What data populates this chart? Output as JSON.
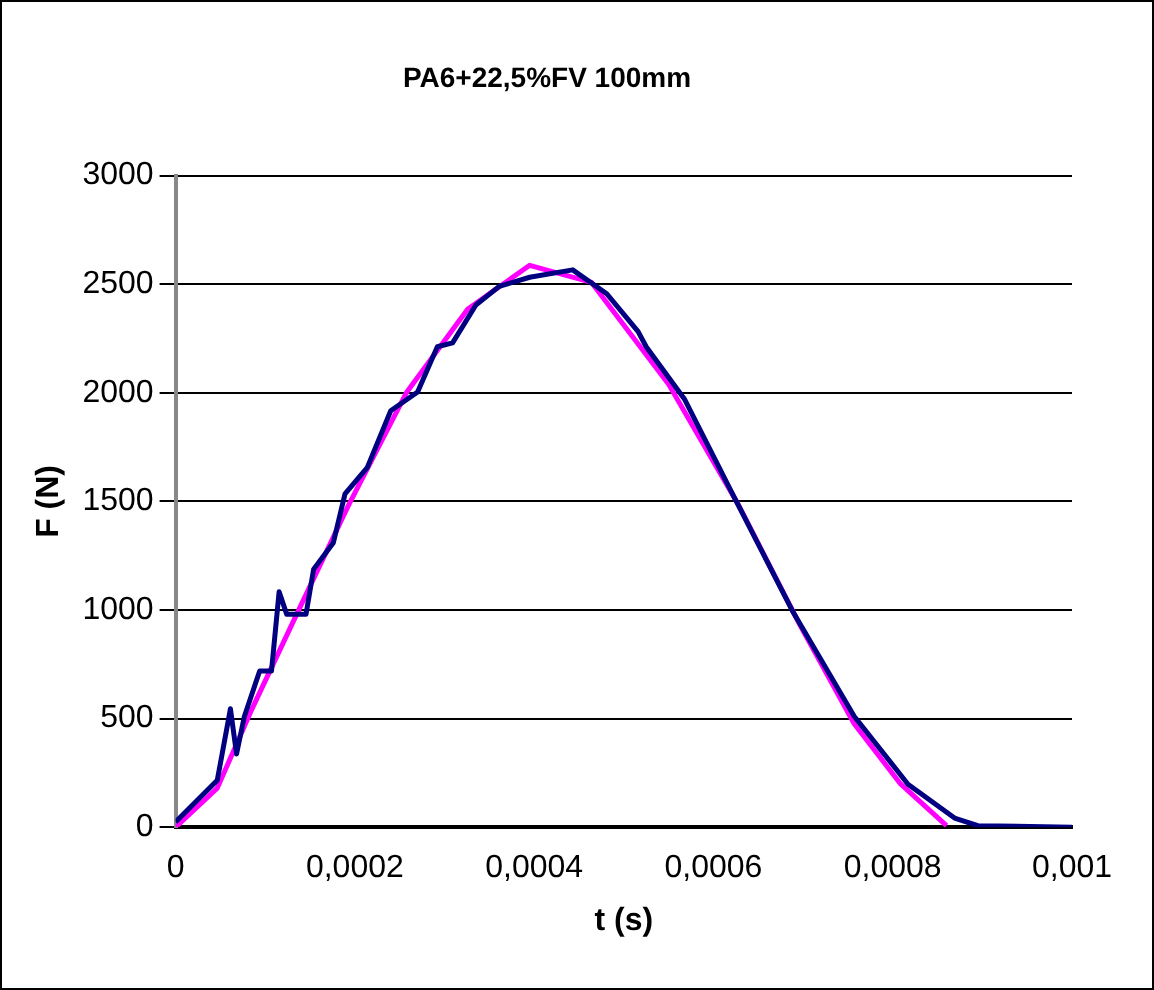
{
  "chart_data": {
    "type": "line",
    "title": "PA6+22,5%FV 100mm",
    "xlabel": "t (s)",
    "ylabel": "F (N)",
    "xlim": [
      0,
      0.001
    ],
    "xticks": [
      0,
      {
        "value": 0.0002,
        "label": "0,0002"
      },
      {
        "value": 0.0004,
        "label": "0,0004"
      },
      {
        "value": 0.0006,
        "label": "0,0006"
      },
      {
        "value": 0.0008,
        "label": "0,0008"
      },
      {
        "value": 0.001,
        "label": "0,001"
      }
    ],
    "ylim": [
      0,
      3000
    ],
    "yticks": [
      0,
      500,
      1000,
      1500,
      2000,
      2500,
      3000
    ],
    "grid": "y",
    "legend": false,
    "marker": "none",
    "line_style": "solid",
    "series": [
      {
        "color": "#000080",
        "x": [
          0,
          4.65e-05,
          6.12e-05,
          6.8e-05,
          7.67e-05,
          9.38e-05,
          0.000107,
          0.0001155,
          0.000124,
          0.0001455,
          0.000154,
          0.000176,
          0.000189,
          0.000214,
          0.00024,
          0.00027,
          0.000292,
          0.000309,
          0.000335,
          0.000361,
          0.000395,
          0.000443,
          0.000481,
          0.000516,
          0.000525,
          0.000568,
          0.000619,
          0.000688,
          0.000757,
          0.000817,
          0.000869,
          0.000895,
          0.001
        ],
        "values": [
          24,
          216,
          545,
          337,
          510,
          719,
          719,
          1084,
          980,
          980,
          1188,
          1310,
          1535,
          1657,
          1917,
          2004,
          2212,
          2230,
          2404,
          2490,
          2532,
          2566,
          2456,
          2282,
          2212,
          1969,
          1553,
          997,
          511,
          198,
          42,
          7,
          0
        ]
      },
      {
        "color": "#ff00ff",
        "x": [
          0,
          4.65e-05,
          8.53e-05,
          0.000137,
          0.000193,
          0.000258,
          0.000326,
          0.000395,
          0.000464,
          0.00055,
          0.000628,
          0.000697,
          0.000757,
          0.000809,
          0.00086
        ],
        "values": [
          0,
          180,
          545,
          997,
          1483,
          2004,
          2386,
          2587,
          2508,
          2039,
          1483,
          927,
          476,
          198,
          7
        ]
      }
    ]
  }
}
